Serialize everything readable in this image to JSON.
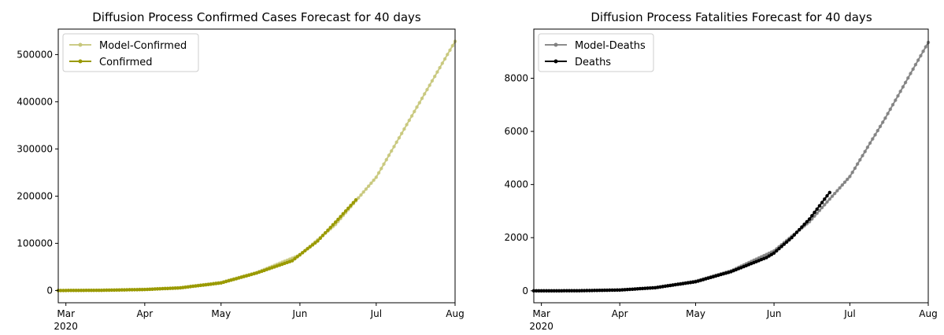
{
  "chart_data": [
    {
      "type": "line",
      "title": "Diffusion Process Confirmed Cases Forecast for 40 days",
      "xlabel": "",
      "ylabel": "",
      "x_range": [
        "2020-02-27",
        "2020-08-01"
      ],
      "ylim": [
        -26000,
        554000
      ],
      "x_ticks": [
        {
          "date": "2020-03-01",
          "label": "Mar",
          "sublabel": "2020"
        },
        {
          "date": "2020-04-01",
          "label": "Apr"
        },
        {
          "date": "2020-05-01",
          "label": "May"
        },
        {
          "date": "2020-06-01",
          "label": "Jun"
        },
        {
          "date": "2020-07-01",
          "label": "Jul"
        },
        {
          "date": "2020-08-01",
          "label": "Aug"
        }
      ],
      "y_ticks": [
        0,
        100000,
        200000,
        300000,
        400000,
        500000
      ],
      "grid": false,
      "legend_position": "top-left",
      "series": [
        {
          "name": "Model-Confirmed",
          "color": "#c7c77a",
          "start_date": "2020-02-27",
          "end_date": "2020-08-01",
          "points": [
            [
              "2020-02-27",
              0
            ],
            [
              "2020-03-15",
              500
            ],
            [
              "2020-04-01",
              2500
            ],
            [
              "2020-04-15",
              6000
            ],
            [
              "2020-05-01",
              17000
            ],
            [
              "2020-05-15",
              38000
            ],
            [
              "2020-06-01",
              75000
            ],
            [
              "2020-06-15",
              140000
            ],
            [
              "2020-07-01",
              240000
            ],
            [
              "2020-07-15",
              370000
            ],
            [
              "2020-08-01",
              528000
            ]
          ]
        },
        {
          "name": "Confirmed",
          "color": "#9a9a00",
          "start_date": "2020-02-27",
          "end_date": "2020-06-23",
          "points": [
            [
              "2020-02-27",
              0
            ],
            [
              "2020-03-15",
              400
            ],
            [
              "2020-04-01",
              2000
            ],
            [
              "2020-04-15",
              5500
            ],
            [
              "2020-05-01",
              16000
            ],
            [
              "2020-05-15",
              37000
            ],
            [
              "2020-05-29",
              63000
            ],
            [
              "2020-06-01",
              76000
            ],
            [
              "2020-06-08",
              105000
            ],
            [
              "2020-06-15",
              145000
            ],
            [
              "2020-06-23",
              192000
            ]
          ]
        }
      ]
    },
    {
      "type": "line",
      "title": "Diffusion Process Fatalities Forecast for 40 days",
      "xlabel": "",
      "ylabel": "",
      "x_range": [
        "2020-02-27",
        "2020-08-01"
      ],
      "ylim": [
        -450,
        9850
      ],
      "x_ticks": [
        {
          "date": "2020-03-01",
          "label": "Mar",
          "sublabel": "2020"
        },
        {
          "date": "2020-04-01",
          "label": "Apr"
        },
        {
          "date": "2020-05-01",
          "label": "May"
        },
        {
          "date": "2020-06-01",
          "label": "Jun"
        },
        {
          "date": "2020-07-01",
          "label": "Jul"
        },
        {
          "date": "2020-08-01",
          "label": "Aug"
        }
      ],
      "y_ticks": [
        0,
        2000,
        4000,
        6000,
        8000
      ],
      "grid": false,
      "legend_position": "top-left",
      "series": [
        {
          "name": "Model-Deaths",
          "color": "#808080",
          "start_date": "2020-02-27",
          "end_date": "2020-08-01",
          "points": [
            [
              "2020-02-27",
              0
            ],
            [
              "2020-03-15",
              2
            ],
            [
              "2020-04-01",
              30
            ],
            [
              "2020-04-15",
              120
            ],
            [
              "2020-05-01",
              360
            ],
            [
              "2020-05-15",
              750
            ],
            [
              "2020-06-01",
              1500
            ],
            [
              "2020-06-15",
              2600
            ],
            [
              "2020-07-01",
              4300
            ],
            [
              "2020-07-15",
              6500
            ],
            [
              "2020-08-01",
              9350
            ]
          ]
        },
        {
          "name": "Deaths",
          "color": "#000000",
          "start_date": "2020-02-27",
          "end_date": "2020-06-23",
          "points": [
            [
              "2020-02-27",
              0
            ],
            [
              "2020-03-15",
              2
            ],
            [
              "2020-04-01",
              30
            ],
            [
              "2020-04-15",
              115
            ],
            [
              "2020-05-01",
              340
            ],
            [
              "2020-05-15",
              720
            ],
            [
              "2020-05-29",
              1250
            ],
            [
              "2020-06-01",
              1420
            ],
            [
              "2020-06-08",
              2000
            ],
            [
              "2020-06-15",
              2700
            ],
            [
              "2020-06-23",
              3700
            ]
          ]
        }
      ]
    }
  ]
}
